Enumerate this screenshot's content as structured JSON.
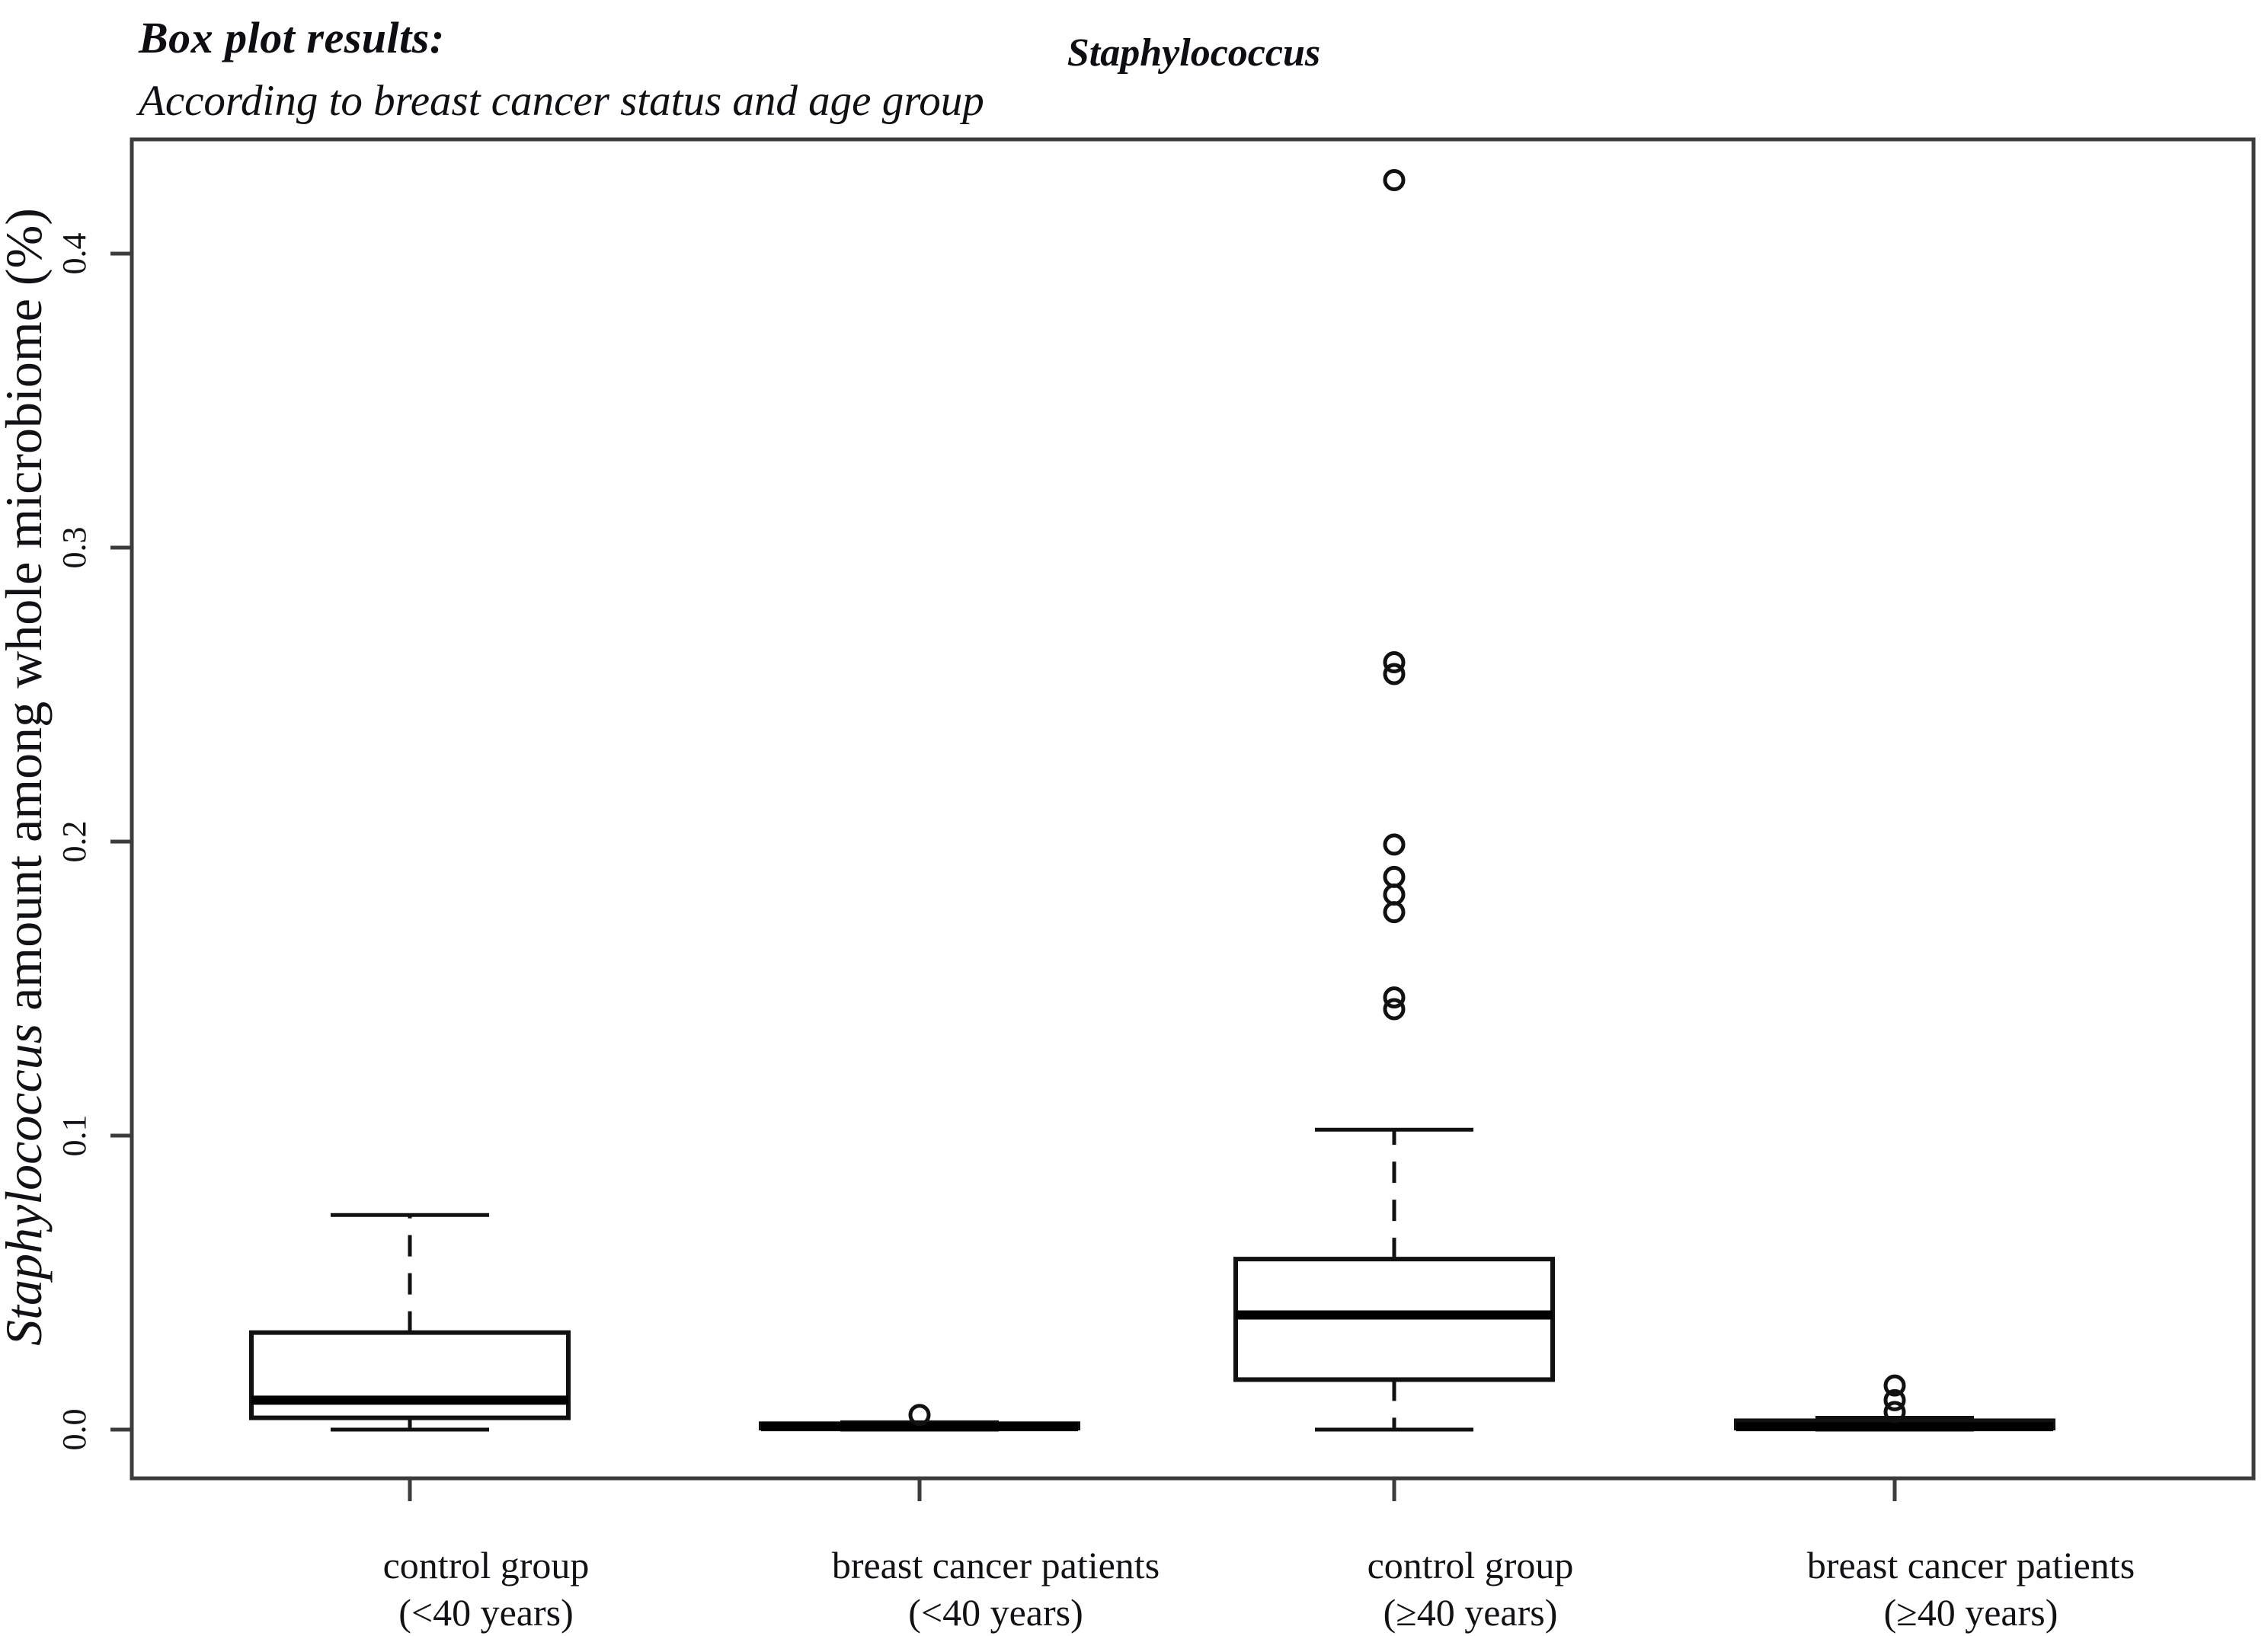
{
  "header": {
    "title": "Box plot results:",
    "subtitle": "According to breast cancer status and age group"
  },
  "chart_data": {
    "type": "boxplot",
    "title": "Staphylococcus",
    "ylabel_parts": [
      {
        "text": "Staphylococcus",
        "italic": true
      },
      {
        "text": " amount among whole microbiome (%)",
        "italic": false
      }
    ],
    "ylim": [
      -0.02,
      0.44
    ],
    "yticks": [
      0.0,
      0.1,
      0.2,
      0.3,
      0.4
    ],
    "ytick_labels": [
      "0.0",
      "0.1",
      "0.2",
      "0.3",
      "0.4"
    ],
    "grid": false,
    "legend": "none",
    "categories": [
      "control group (<40 years)",
      "breast cancer patients (<40 years)",
      "control group (≥40 years)",
      "breast cancer patients (≥40 years)"
    ],
    "series": [
      {
        "label_lines": [
          "control group",
          "(<40 years)"
        ],
        "whisker_low": 0.0,
        "q1": 0.004,
        "median": 0.01,
        "q3": 0.033,
        "whisker_high": 0.073,
        "outliers": []
      },
      {
        "label_lines": [
          "breast cancer patients",
          "(<40 years)"
        ],
        "whisker_low": 0.0,
        "q1": 0.0005,
        "median": 0.001,
        "q3": 0.002,
        "whisker_high": 0.0025,
        "outliers": [
          0.005
        ]
      },
      {
        "label_lines": [
          "control group",
          "(≥40 years)"
        ],
        "whisker_low": 0.0,
        "q1": 0.017,
        "median": 0.039,
        "q3": 0.058,
        "whisker_high": 0.102,
        "outliers": [
          0.425,
          0.261,
          0.257,
          0.199,
          0.188,
          0.182,
          0.176,
          0.147,
          0.143
        ]
      },
      {
        "label_lines": [
          "breast cancer patients",
          "(≥40 years)"
        ],
        "whisker_low": 0.0,
        "q1": 0.0005,
        "median": 0.001,
        "q3": 0.003,
        "whisker_high": 0.004,
        "outliers": [
          0.006,
          0.01,
          0.015
        ]
      }
    ],
    "line_color": "#111111",
    "frame_color": "#3c3c3c",
    "box_fill": "#ffffff"
  }
}
